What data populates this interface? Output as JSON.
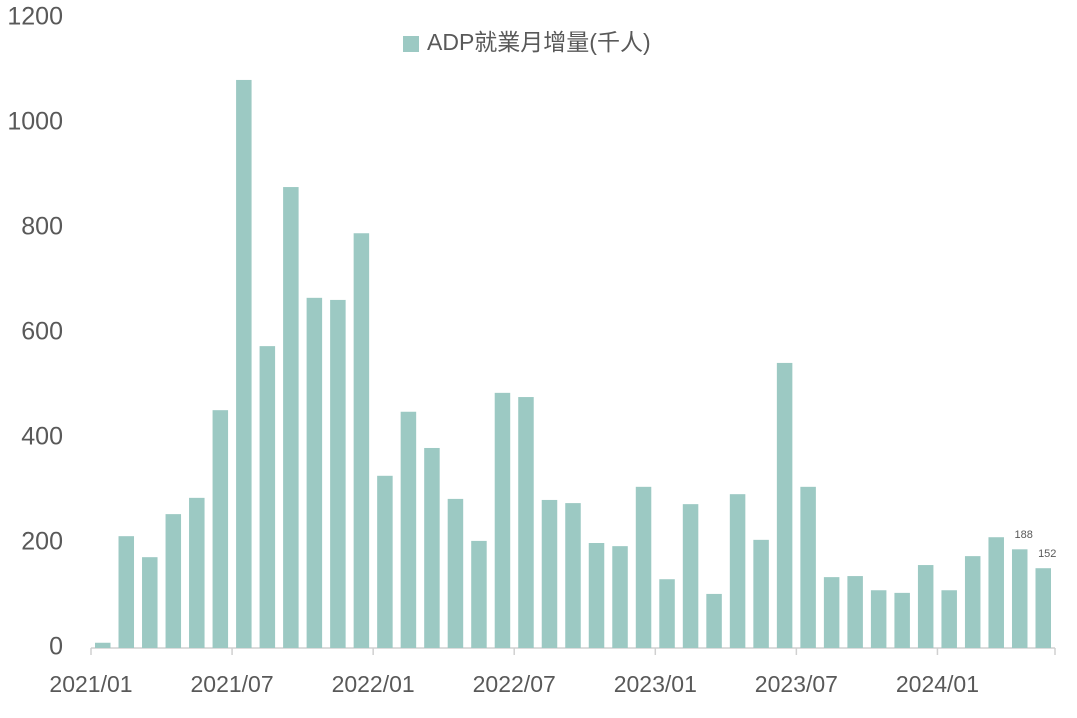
{
  "chart_data": {
    "type": "bar",
    "categories": [
      "2021/01",
      null,
      null,
      null,
      null,
      null,
      "2021/07",
      null,
      null,
      null,
      null,
      null,
      "2022/01",
      null,
      null,
      null,
      null,
      null,
      "2022/07",
      null,
      null,
      null,
      null,
      null,
      "2023/01",
      null,
      null,
      null,
      null,
      null,
      "2023/07",
      null,
      null,
      null,
      null,
      null,
      "2024/01",
      null,
      null,
      null,
      null
    ],
    "series": [
      {
        "name": "ADP就業月增量(千人)",
        "color": "#9cc9c3",
        "values": [
          10,
          213,
          173,
          255,
          286,
          453,
          1082,
          575,
          878,
          667,
          663,
          790,
          328,
          450,
          381,
          284,
          204,
          486,
          478,
          282,
          276,
          200,
          194,
          307,
          131,
          274,
          103,
          293,
          206,
          543,
          307,
          135,
          137,
          110,
          105,
          158,
          110,
          175,
          211,
          188,
          152
        ],
        "value_labels": [
          null,
          null,
          null,
          null,
          null,
          null,
          null,
          null,
          null,
          null,
          null,
          null,
          null,
          null,
          null,
          null,
          null,
          null,
          null,
          null,
          null,
          null,
          null,
          null,
          null,
          null,
          null,
          null,
          null,
          null,
          null,
          null,
          null,
          null,
          null,
          null,
          null,
          null,
          null,
          "188",
          "152"
        ]
      }
    ],
    "ylim": [
      0,
      1200
    ],
    "yticks": [
      0,
      200,
      400,
      600,
      800,
      1000,
      1200
    ],
    "legend": "top"
  }
}
